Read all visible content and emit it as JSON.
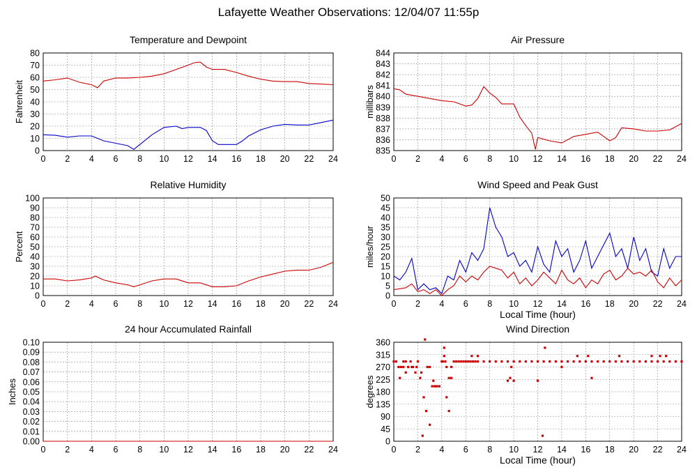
{
  "page_title": "Lafayette Weather Observations: 12/04/07 11:55p",
  "colors": {
    "red": "#cc0000",
    "blue": "#0000cc",
    "grid": "#888888",
    "frame": "#000000"
  },
  "chart_data": [
    {
      "id": "temp",
      "type": "line",
      "title": "Temperature and Dewpoint",
      "ylabel": "Fahrenheit",
      "xlabel": "",
      "xlim": [
        0,
        24
      ],
      "ylim": [
        0,
        80
      ],
      "x_ticks": [
        "0",
        "2",
        "4",
        "6",
        "8",
        "10",
        "12",
        "14",
        "16",
        "18",
        "20",
        "22",
        "24"
      ],
      "y_ticks": [
        "0",
        "10",
        "20",
        "30",
        "40",
        "50",
        "60",
        "70",
        "80"
      ],
      "grid": true,
      "series": [
        {
          "color": "#cc0000",
          "x": [
            0,
            1,
            2,
            3,
            4,
            4.5,
            5,
            6,
            7,
            8,
            9,
            10,
            11,
            12,
            12.5,
            13,
            13.5,
            14,
            15,
            16,
            17,
            18,
            19,
            20,
            21,
            22,
            23,
            24
          ],
          "y": [
            57,
            58,
            59.5,
            56,
            54,
            51.5,
            57,
            59.5,
            59.5,
            60,
            61,
            63,
            66.5,
            70,
            72,
            72.5,
            68.5,
            66.5,
            66.5,
            64,
            61,
            58.5,
            57,
            56.5,
            56.5,
            55,
            54.5,
            54
          ]
        },
        {
          "color": "#0000cc",
          "x": [
            0,
            1,
            2,
            3,
            4,
            5,
            6,
            7,
            7.5,
            8,
            9,
            10,
            11,
            11.5,
            12,
            13,
            13.5,
            14,
            14.5,
            15,
            16,
            16.5,
            17,
            18,
            19,
            20,
            21,
            22,
            23,
            24
          ],
          "y": [
            13,
            12.5,
            11,
            12,
            12,
            8,
            6,
            4,
            1,
            5,
            13,
            19,
            20,
            18,
            19,
            19,
            16.5,
            8,
            5,
            5,
            5,
            8,
            12,
            17,
            20,
            21.5,
            21,
            21,
            23,
            25
          ]
        }
      ]
    },
    {
      "id": "pressure",
      "type": "line",
      "title": "Air Pressure",
      "ylabel": "millibars",
      "xlabel": "",
      "xlim": [
        0,
        24
      ],
      "ylim": [
        835,
        844
      ],
      "x_ticks": [
        "0",
        "2",
        "4",
        "6",
        "8",
        "10",
        "12",
        "14",
        "16",
        "18",
        "20",
        "22",
        "24"
      ],
      "y_ticks": [
        "835",
        "836",
        "837",
        "838",
        "839",
        "840",
        "841",
        "842",
        "843",
        "844"
      ],
      "grid": true,
      "series": [
        {
          "color": "#cc0000",
          "x": [
            0,
            0.5,
            1,
            2,
            3,
            4,
            5,
            6,
            6.5,
            7,
            7.5,
            8,
            8.5,
            9,
            10,
            10.5,
            11,
            11.5,
            11.8,
            12,
            13,
            14,
            15,
            16,
            17,
            18,
            18.5,
            19,
            20,
            21,
            22,
            23,
            24
          ],
          "y": [
            840.7,
            840.6,
            840.2,
            840,
            839.8,
            839.6,
            839.5,
            839.1,
            839.2,
            839.8,
            840.9,
            840.3,
            839.9,
            839.3,
            839.3,
            838.1,
            837.3,
            836.6,
            835.1,
            836.2,
            835.9,
            835.7,
            836.3,
            836.5,
            836.7,
            835.9,
            836.2,
            837.1,
            837,
            836.8,
            836.8,
            836.9,
            837.5
          ]
        }
      ]
    },
    {
      "id": "humidity",
      "type": "line",
      "title": "Relative Humidity",
      "ylabel": "Percent",
      "xlabel": "",
      "xlim": [
        0,
        24
      ],
      "ylim": [
        0,
        100
      ],
      "x_ticks": [
        "0",
        "2",
        "4",
        "6",
        "8",
        "10",
        "12",
        "14",
        "16",
        "18",
        "20",
        "22",
        "24"
      ],
      "y_ticks": [
        "0",
        "10",
        "20",
        "30",
        "40",
        "50",
        "60",
        "70",
        "80",
        "90",
        "100"
      ],
      "grid": true,
      "series": [
        {
          "color": "#cc0000",
          "x": [
            0,
            1,
            2,
            3,
            4,
            4.3,
            5,
            6,
            7,
            7.5,
            8,
            9,
            10,
            11,
            12,
            13,
            14,
            15,
            16,
            17,
            18,
            19,
            20,
            21,
            22,
            23,
            24
          ],
          "y": [
            17,
            17,
            15,
            16,
            18,
            20,
            16,
            13,
            11,
            9,
            11,
            15,
            17,
            17,
            13,
            13,
            9,
            9,
            10,
            15,
            19,
            22,
            25,
            26,
            26,
            29,
            34
          ]
        }
      ]
    },
    {
      "id": "wind-speed",
      "type": "line",
      "title": "Wind Speed and Peak Gust",
      "ylabel": "miles/hour",
      "xlabel": "Local Time (hour)",
      "xlim": [
        0,
        24
      ],
      "ylim": [
        0,
        50
      ],
      "x_ticks": [
        "0",
        "2",
        "4",
        "6",
        "8",
        "10",
        "12",
        "14",
        "16",
        "18",
        "20",
        "22",
        "24"
      ],
      "y_ticks": [
        "0",
        "5",
        "10",
        "15",
        "20",
        "25",
        "30",
        "35",
        "40",
        "45",
        "50"
      ],
      "grid": true,
      "series": [
        {
          "color": "#0000cc",
          "x": [
            0,
            0.5,
            1,
            1.5,
            2,
            2.5,
            3,
            3.5,
            4,
            4.5,
            5,
            5.5,
            6,
            6.5,
            7,
            7.5,
            8,
            8.5,
            9,
            9.5,
            10,
            10.5,
            11,
            11.5,
            12,
            12.5,
            13,
            13.5,
            14,
            14.5,
            15,
            15.5,
            16,
            16.5,
            17,
            17.5,
            18,
            18.5,
            19,
            19.5,
            20,
            20.5,
            21,
            21.5,
            22,
            22.5,
            23,
            23.5,
            24
          ],
          "y": [
            10,
            8,
            12,
            19,
            3,
            6,
            3,
            4,
            1,
            10,
            8,
            18,
            12,
            22,
            18,
            24,
            45,
            35,
            30,
            20,
            22,
            15,
            18,
            12,
            25,
            16,
            12,
            28,
            20,
            24,
            12,
            18,
            28,
            14,
            20,
            26,
            32,
            20,
            24,
            14,
            30,
            18,
            24,
            12,
            10,
            24,
            14,
            20,
            20
          ]
        },
        {
          "color": "#cc0000",
          "x": [
            0,
            1,
            1.5,
            2,
            2.5,
            3,
            3.5,
            4,
            4.5,
            5,
            5.5,
            6,
            6.5,
            7,
            7.5,
            8,
            8.5,
            9,
            9.5,
            10,
            10.5,
            11,
            11.5,
            12,
            12.5,
            13,
            13.5,
            14,
            14.5,
            15,
            15.5,
            16,
            16.5,
            17,
            17.5,
            18,
            18.5,
            19,
            19.5,
            20,
            20.5,
            21,
            21.5,
            22,
            22.5,
            23,
            23.5,
            24
          ],
          "y": [
            3,
            4,
            6,
            2,
            3,
            1,
            3,
            0,
            3,
            5,
            10,
            7,
            10,
            8,
            12,
            15,
            14,
            13,
            9,
            12,
            6,
            9,
            5,
            8,
            12,
            9,
            6,
            13,
            8,
            6,
            9,
            4,
            8,
            6,
            11,
            13,
            8,
            10,
            14,
            11,
            12,
            10,
            13,
            7,
            4,
            9,
            5,
            8
          ]
        }
      ]
    },
    {
      "id": "rainfall",
      "type": "line",
      "title": "24 hour Accumulated Rainfall",
      "ylabel": "Inches",
      "xlabel": "",
      "xlim": [
        0,
        24
      ],
      "ylim": [
        0,
        0.1
      ],
      "x_ticks": [
        "0",
        "2",
        "4",
        "6",
        "8",
        "10",
        "12",
        "14",
        "16",
        "18",
        "20",
        "22",
        "24"
      ],
      "y_ticks": [
        "0.00",
        "0.01",
        "0.02",
        "0.03",
        "0.04",
        "0.05",
        "0.06",
        "0.07",
        "0.08",
        "0.09",
        "0.10"
      ],
      "grid": true,
      "series": [
        {
          "color": "#cc0000",
          "x": [
            0,
            24
          ],
          "y": [
            0,
            0
          ]
        }
      ]
    },
    {
      "id": "wind-direction",
      "type": "scatter",
      "title": "Wind Direction",
      "ylabel": "degrees",
      "xlabel": "Local Time (hour)",
      "xlim": [
        0,
        24
      ],
      "ylim": [
        0,
        360
      ],
      "x_ticks": [
        "0",
        "2",
        "4",
        "6",
        "8",
        "10",
        "12",
        "14",
        "16",
        "18",
        "20",
        "22",
        "24"
      ],
      "y_ticks": [
        "0",
        "45",
        "90",
        "135",
        "180",
        "225",
        "270",
        "315",
        "360"
      ],
      "grid": true,
      "series": [
        {
          "color": "#cc0000",
          "x": [
            0,
            0.2,
            0.4,
            0.6,
            0.8,
            1,
            1.2,
            1.4,
            1.6,
            1.8,
            2,
            2.2,
            2.4,
            2.6,
            2.8,
            3,
            3.2,
            3.4,
            3.6,
            3.8,
            4,
            4.2,
            4.4,
            4.6,
            4.8,
            5,
            5.2,
            5.4,
            5.6,
            5.8,
            6,
            6.2,
            6.4,
            6.6,
            6.8,
            7,
            7.5,
            8,
            8.5,
            9,
            9.5,
            10,
            10.5,
            11,
            11.5,
            12,
            12.5,
            13,
            13.5,
            14,
            14.5,
            15,
            15.5,
            16,
            16.5,
            17,
            17.5,
            18,
            18.5,
            19,
            19.5,
            20,
            20.5,
            21,
            21.5,
            22,
            22.5,
            23,
            23.5,
            24,
            0.5,
            1,
            1.5,
            2.5,
            2.7,
            3.3,
            3.5,
            4.2,
            4.4,
            4.6,
            2.3,
            3,
            0.8,
            1.2,
            1.9,
            4.1,
            4.3,
            9.5,
            9.8,
            10,
            12,
            12.4,
            12.6,
            14,
            15.3,
            16.2,
            16.5,
            18.8,
            21.5,
            22.2,
            22.7,
            6.5,
            7,
            9.7,
            4.8
          ],
          "y": [
            290,
            290,
            270,
            270,
            270,
            250,
            270,
            290,
            270,
            250,
            290,
            230,
            20,
            370,
            270,
            270,
            200,
            200,
            200,
            200,
            290,
            340,
            270,
            230,
            230,
            290,
            290,
            290,
            290,
            290,
            290,
            290,
            290,
            290,
            290,
            290,
            290,
            290,
            290,
            290,
            290,
            290,
            290,
            290,
            290,
            290,
            290,
            290,
            290,
            290,
            290,
            290,
            290,
            290,
            290,
            290,
            290,
            290,
            290,
            290,
            290,
            290,
            290,
            290,
            290,
            290,
            290,
            290,
            290,
            290,
            230,
            290,
            270,
            160,
            110,
            220,
            200,
            310,
            160,
            110,
            250,
            60,
            290,
            270,
            270,
            290,
            290,
            220,
            270,
            220,
            220,
            20,
            340,
            270,
            310,
            310,
            230,
            310,
            310,
            310,
            310,
            310,
            310,
            230,
            270
          ]
        }
      ]
    }
  ]
}
